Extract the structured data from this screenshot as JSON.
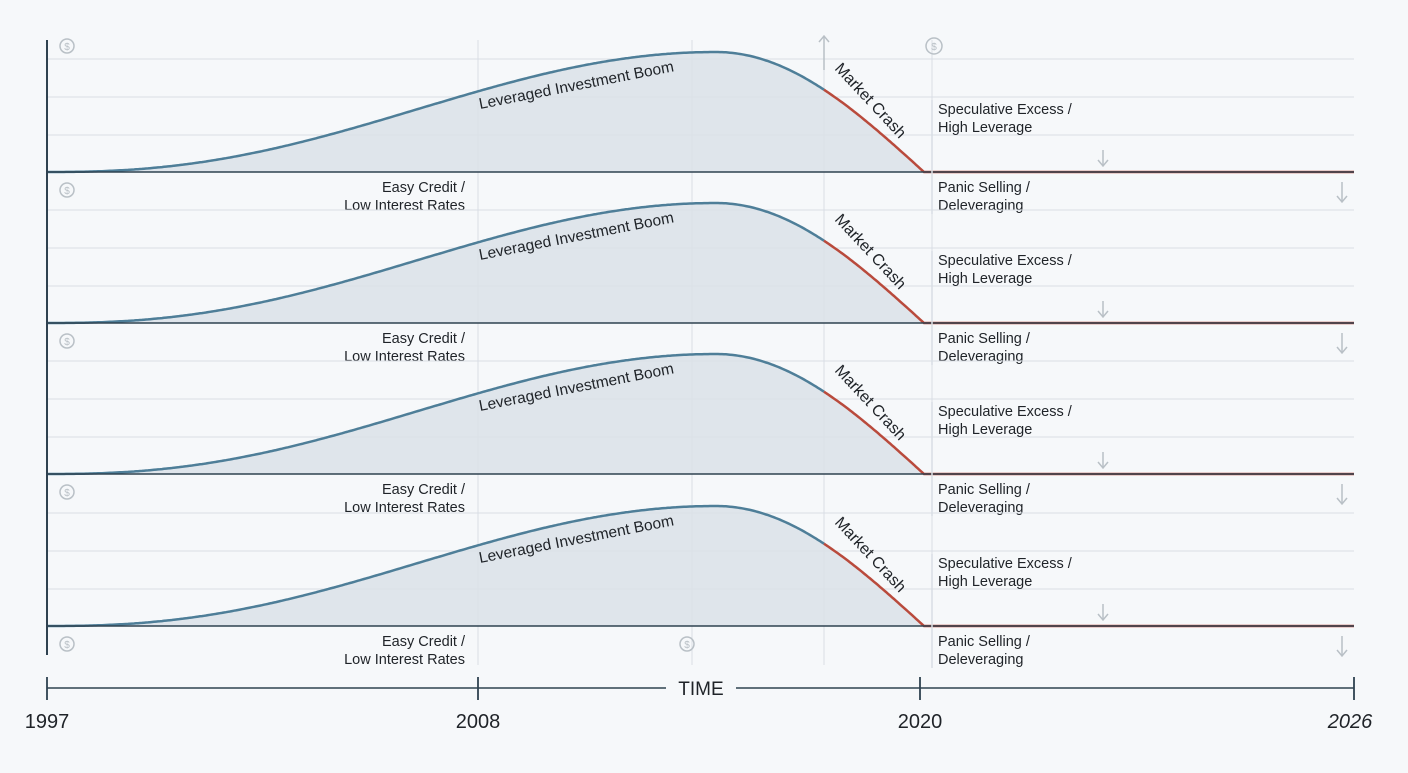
{
  "colors": {
    "background": "#f6f8fa",
    "grid": "#d9dee4",
    "baseline": "#2f4250",
    "boom_curve": "#4e7e98",
    "crash_curve": "#b94a3c",
    "fill": "#dbe2e8",
    "icon": "#b9c0c6",
    "text": "#1f2328"
  },
  "panels": [
    {
      "boom_label": "Leveraged Investment Boom",
      "crash_label": "Market Crash",
      "upper_note": [
        "Speculative Excess /",
        "High Leverage"
      ],
      "lower_left_note": [
        "Easy Credit /",
        "Low Interest Rates"
      ],
      "lower_right_note": [
        "Panic Selling /",
        "Deleveraging"
      ]
    },
    {
      "boom_label": "Leveraged Investment Boom",
      "crash_label": "Market Crash",
      "upper_note": [
        "Speculative Excess /",
        "High Leverage"
      ],
      "lower_left_note": [
        "Easy Credit /",
        "Low Interest Rates"
      ],
      "lower_right_note": [
        "Panic Selling /",
        "Deleveraging"
      ]
    },
    {
      "boom_label": "Leveraged Investment Boom",
      "crash_label": "Market Crash",
      "upper_note": [
        "Speculative Excess /",
        "High Leverage"
      ],
      "lower_left_note": [
        "Easy Credit /",
        "Low Interest Rates"
      ],
      "lower_right_note": [
        "Panic Selling /",
        "Deleveraging"
      ]
    },
    {
      "boom_label": "Leveraged Investment Boom",
      "crash_label": "Market Crash",
      "upper_note": [
        "Speculative Excess /",
        "High Leverage"
      ],
      "lower_left_note": [
        "Easy Credit /",
        "Low Interest Rates"
      ],
      "lower_right_note": [
        "Panic Selling /",
        "Deleveraging"
      ]
    }
  ],
  "icons": {
    "dollar": "dollar-coin-icon",
    "arrow_down": "arrow-down-icon",
    "arrow_up": "arrow-up-icon"
  },
  "dollar_symbol": "$",
  "timeline": {
    "axis_label": "TIME",
    "ticks": [
      "1997",
      "2008",
      "2020",
      "2026"
    ]
  }
}
